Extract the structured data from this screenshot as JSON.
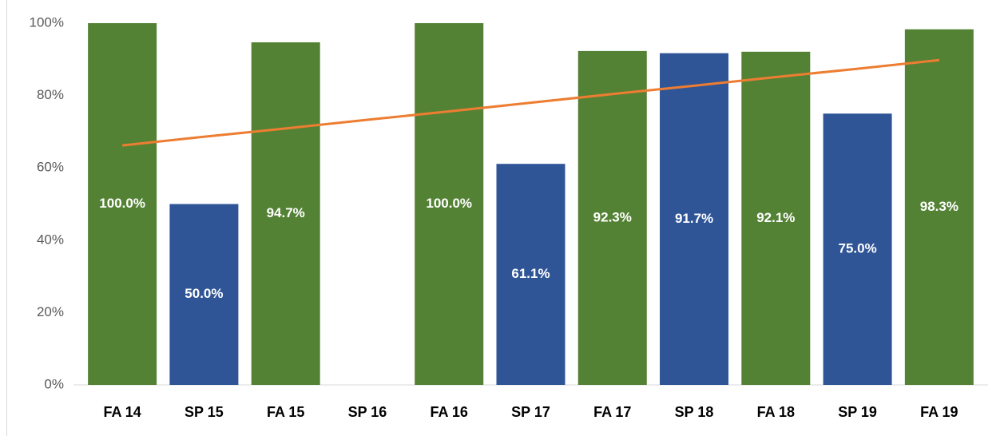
{
  "chart_data": {
    "type": "bar",
    "categories": [
      "FA 14",
      "SP 15",
      "FA 15",
      "SP 16",
      "FA 16",
      "SP 17",
      "FA 17",
      "SP 18",
      "FA 18",
      "SP 19",
      "FA 19"
    ],
    "values": [
      100,
      50,
      94.7,
      null,
      100,
      61.1,
      92.3,
      91.7,
      92.1,
      75,
      98.3
    ],
    "value_labels": [
      "100.0%",
      "50.0%",
      "94.7%",
      null,
      "100.0%",
      "61.1%",
      "92.3%",
      "91.7%",
      "92.1%",
      "75.0%",
      "98.3%"
    ],
    "colors": [
      "#548235",
      "#2f5597",
      "#548235",
      "#2f5597",
      "#548235",
      "#2f5597",
      "#548235",
      "#2f5597",
      "#548235",
      "#2f5597",
      "#548235"
    ],
    "trendline": {
      "color": "#ed7d31",
      "values": [
        66.2,
        68.6,
        70.9,
        73.3,
        75.6,
        78.0,
        80.4,
        82.7,
        85.1,
        87.4,
        89.8
      ]
    },
    "ylim": [
      0,
      100
    ],
    "yticks": [
      {
        "value": 0,
        "label": "0%"
      },
      {
        "value": 20,
        "label": "20%"
      },
      {
        "value": 40,
        "label": "40%"
      },
      {
        "value": 60,
        "label": "60%"
      },
      {
        "value": 80,
        "label": "80%"
      },
      {
        "value": 100,
        "label": "100%"
      }
    ],
    "grid": false
  }
}
